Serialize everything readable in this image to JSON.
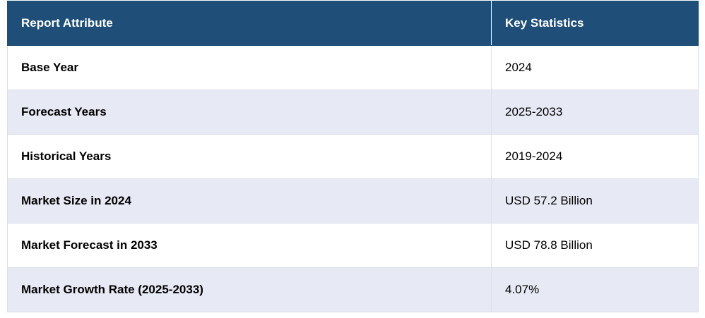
{
  "table": {
    "headers": {
      "attribute": "Report Attribute",
      "statistics": "Key Statistics"
    },
    "rows": [
      {
        "attribute": "Base Year",
        "value": "2024"
      },
      {
        "attribute": "Forecast Years",
        "value": "2025-2033"
      },
      {
        "attribute": "Historical Years",
        "value": "2019-2024"
      },
      {
        "attribute": "Market Size in 2024",
        "value": "USD 57.2 Billion"
      },
      {
        "attribute": "Market Forecast in 2033",
        "value": "USD 78.8 Billion"
      },
      {
        "attribute": "Market Growth Rate (2025-2033)",
        "value": "4.07%"
      }
    ]
  },
  "colors": {
    "header_background": "#1f4e79",
    "header_text": "#ffffff",
    "stripe_row": "#e7e9f5",
    "plain_row": "#ffffff",
    "border": "#dcdfe8"
  }
}
